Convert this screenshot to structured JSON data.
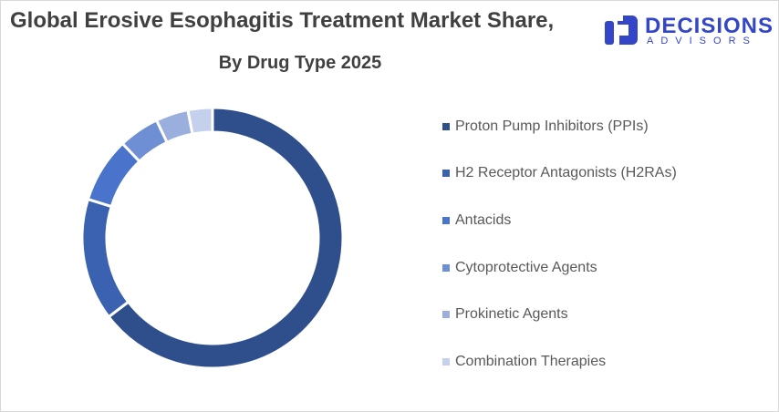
{
  "header": {
    "title": "Global Erosive Esophagitis Treatment Market Share,",
    "subtitle": "By Drug Type 2025"
  },
  "logo": {
    "word": "DECISIONS",
    "sub": "ADVISORS",
    "color": "#3346c8"
  },
  "chart_data": {
    "type": "pie",
    "subtype": "donut",
    "title": "Global Erosive Esophagitis Treatment Market Share,",
    "subtitle": "By Drug Type 2025",
    "categories": [
      "Proton Pump Inhibitors (PPIs)",
      "H2 Receptor Antagonists (H2RAs)",
      "Antacids",
      "Cytoprotective Agents",
      "Prokinetic Agents",
      "Combination Therapies"
    ],
    "values": [
      64,
      15,
      8,
      5,
      4,
      3
    ],
    "colors": [
      "#2f4e8c",
      "#3a62b0",
      "#4a74cc",
      "#6e8fd4",
      "#9aafde",
      "#c4d0ec"
    ],
    "legend_position": "right"
  }
}
